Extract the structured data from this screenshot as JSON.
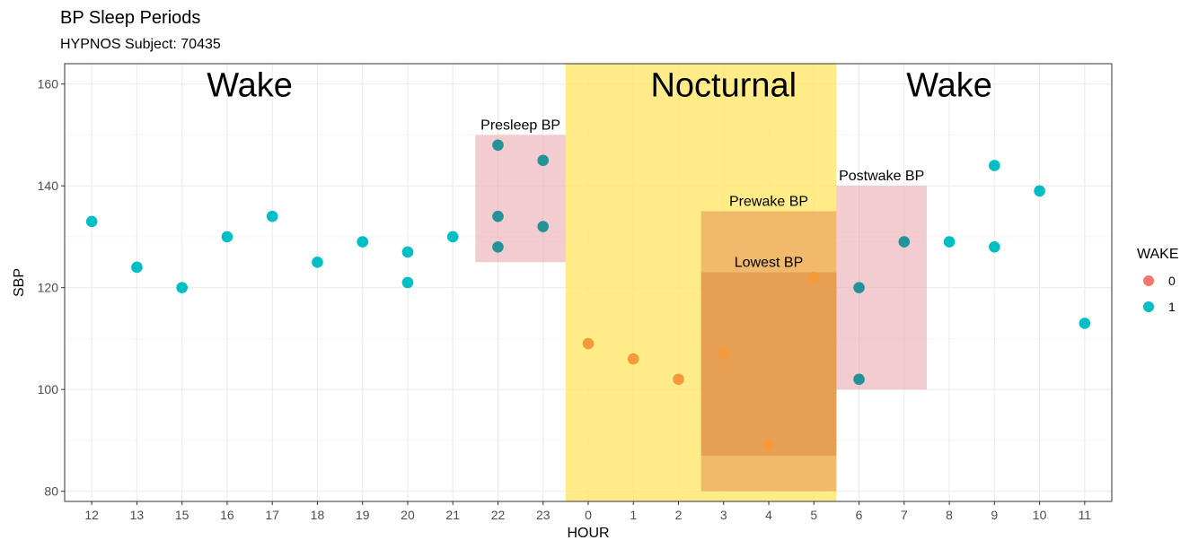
{
  "chart_data": {
    "type": "scatter",
    "title": "BP Sleep Periods",
    "subtitle": "HYPNOS Subject: 70435",
    "xlabel": "HOUR",
    "ylabel": "SBP",
    "categories": [
      "12",
      "13",
      "15",
      "16",
      "17",
      "18",
      "19",
      "20",
      "21",
      "22",
      "23",
      "0",
      "1",
      "2",
      "3",
      "4",
      "5",
      "6",
      "7",
      "8",
      "9",
      "10",
      "11"
    ],
    "ylim": [
      78,
      164
    ],
    "yticks": [
      80,
      100,
      120,
      140,
      160
    ],
    "grid": true,
    "legend": {
      "title": "WAKE",
      "position": "right",
      "entries": [
        {
          "label": "0",
          "color": "#F8766D"
        },
        {
          "label": "1",
          "color": "#00BFC4"
        }
      ]
    },
    "series": [
      {
        "name": "0",
        "color": "#F8766D",
        "points": [
          {
            "x": "0",
            "y": 109
          },
          {
            "x": "1",
            "y": 106
          },
          {
            "x": "2",
            "y": 102
          },
          {
            "x": "3",
            "y": 107
          },
          {
            "x": "4",
            "y": 89
          },
          {
            "x": "5",
            "y": 122
          }
        ]
      },
      {
        "name": "1",
        "color": "#00BFC4",
        "points": [
          {
            "x": "12",
            "y": 133
          },
          {
            "x": "13",
            "y": 124
          },
          {
            "x": "15",
            "y": 120
          },
          {
            "x": "16",
            "y": 130
          },
          {
            "x": "17",
            "y": 134
          },
          {
            "x": "18",
            "y": 125
          },
          {
            "x": "19",
            "y": 129
          },
          {
            "x": "20",
            "y": 127
          },
          {
            "x": "20",
            "y": 121
          },
          {
            "x": "21",
            "y": 130
          },
          {
            "x": "22",
            "y": 148
          },
          {
            "x": "22",
            "y": 134
          },
          {
            "x": "22",
            "y": 128
          },
          {
            "x": "23",
            "y": 145
          },
          {
            "x": "23",
            "y": 132
          },
          {
            "x": "6",
            "y": 120
          },
          {
            "x": "6",
            "y": 102
          },
          {
            "x": "7",
            "y": 129
          },
          {
            "x": "8",
            "y": 129
          },
          {
            "x": "9",
            "y": 144
          },
          {
            "x": "9",
            "y": 128
          },
          {
            "x": "10",
            "y": 139
          },
          {
            "x": "11",
            "y": 113
          }
        ]
      }
    ],
    "regions": [
      {
        "label": "Nocturnal",
        "x_from": "0",
        "x_to": "5",
        "y_from": "min",
        "y_to": "max",
        "color": "#FFE45C",
        "opacity": 0.72
      },
      {
        "label": "Presleep BP",
        "x_from": "22",
        "x_to": "23",
        "y_from": 125,
        "y_to": 150,
        "color": "#E8A2A6",
        "opacity": 0.55
      },
      {
        "label": "Prewake BP",
        "x_from": "3",
        "x_to": "5",
        "y_from": 80,
        "y_to": 135,
        "color": "#EBA45E",
        "opacity": 0.7
      },
      {
        "label": "Lowest BP",
        "x_from": "3",
        "x_to": "5",
        "y_from": 87,
        "y_to": 123,
        "color": "#DE8A40",
        "opacity": 0.55
      },
      {
        "label": "Postwake BP",
        "x_from": "6",
        "x_to": "7",
        "y_from": 100,
        "y_to": 140,
        "color": "#E8A2A6",
        "opacity": 0.55
      }
    ],
    "annotations": [
      {
        "text": "Wake",
        "x": "16.5",
        "y": 160
      },
      {
        "text": "Nocturnal",
        "x": "3",
        "y": 160
      },
      {
        "text": "Wake",
        "x": "8",
        "y": 160
      }
    ]
  }
}
